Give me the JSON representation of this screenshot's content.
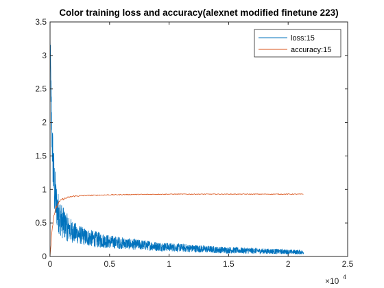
{
  "chart_data": {
    "type": "line",
    "title": "Color training loss and accuracy(alexnet modified finetune 223)",
    "xlabel": "",
    "ylabel": "",
    "xlim": [
      0,
      25000
    ],
    "ylim": [
      0,
      3.5
    ],
    "x_tick_labels": [
      "0",
      "0.5",
      "1",
      "1.5",
      "2",
      "2.5"
    ],
    "x_tick_values": [
      0,
      5000,
      10000,
      15000,
      20000,
      25000
    ],
    "x_exponent_base": "×10",
    "x_exponent_power": "4",
    "y_tick_labels": [
      "0",
      "0.5",
      "1",
      "1.5",
      "2",
      "2.5",
      "3",
      "3.5"
    ],
    "y_tick_values": [
      0,
      0.5,
      1,
      1.5,
      2,
      2.5,
      3,
      3.5
    ],
    "grid": false,
    "legend_placement": "top-right",
    "series": [
      {
        "name": "loss:15",
        "color": "#0072BD",
        "x": [
          0,
          100,
          200,
          300,
          400,
          500,
          700,
          1000,
          1500,
          2000,
          2500,
          3000,
          4000,
          5000,
          6000,
          7000,
          8000,
          9000,
          10000,
          11000,
          12000,
          13000,
          14000,
          15000,
          16000,
          17000,
          18000,
          19000,
          20000,
          21000,
          21300
        ],
        "y": [
          3.3,
          2.2,
          1.6,
          1.2,
          0.95,
          0.8,
          0.65,
          0.52,
          0.42,
          0.36,
          0.32,
          0.29,
          0.25,
          0.22,
          0.2,
          0.18,
          0.17,
          0.15,
          0.14,
          0.13,
          0.12,
          0.11,
          0.1,
          0.095,
          0.09,
          0.085,
          0.08,
          0.075,
          0.07,
          0.065,
          0.06
        ],
        "noise": [
          0.2,
          0.35,
          0.4,
          0.45,
          0.4,
          0.35,
          0.3,
          0.25,
          0.2,
          0.16,
          0.14,
          0.13,
          0.12,
          0.1,
          0.09,
          0.08,
          0.075,
          0.07,
          0.065,
          0.06,
          0.06,
          0.055,
          0.05,
          0.05,
          0.045,
          0.045,
          0.04,
          0.04,
          0.035,
          0.035,
          0.03
        ]
      },
      {
        "name": "accuracy:15",
        "color": "#D95319",
        "x": [
          0,
          100,
          200,
          300,
          500,
          700,
          1000,
          1500,
          2000,
          3000,
          4000,
          5000,
          7000,
          10000,
          15000,
          20000,
          21300
        ],
        "y": [
          0.0,
          0.25,
          0.45,
          0.6,
          0.72,
          0.8,
          0.85,
          0.88,
          0.9,
          0.91,
          0.915,
          0.92,
          0.925,
          0.93,
          0.93,
          0.93,
          0.93
        ],
        "noise": [
          0,
          0.04,
          0.04,
          0.03,
          0.025,
          0.02,
          0.015,
          0.012,
          0.01,
          0.008,
          0.007,
          0.006,
          0.006,
          0.005,
          0.005,
          0.005,
          0.005
        ]
      }
    ]
  }
}
